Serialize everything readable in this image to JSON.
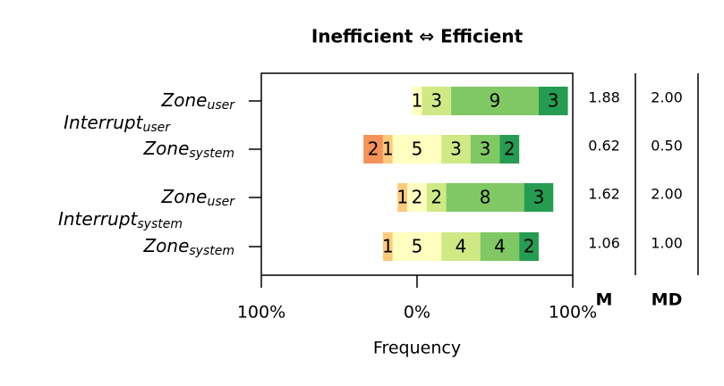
{
  "chart_data": {
    "type": "diverging_bar",
    "title": "Inefficient ⇔ Efficient",
    "x_label": "Frequency",
    "xlim": [
      -100,
      100
    ],
    "xticks": [
      {
        "value": -100,
        "label": "100%"
      },
      {
        "value": 0,
        "label": "0%"
      },
      {
        "value": 100,
        "label": "100%"
      }
    ],
    "neutral_index": 3,
    "row_labels": [
      {
        "base": "Zone",
        "sub": "user"
      },
      {
        "base": "Zone",
        "sub": "system"
      },
      {
        "base": "Zone",
        "sub": "user"
      },
      {
        "base": "Zone",
        "sub": "system"
      }
    ],
    "group_labels": [
      {
        "base": "Interrupt",
        "sub": "user"
      },
      {
        "base": "Interrupt",
        "sub": "system"
      }
    ],
    "series": [
      {
        "color": "#d73027",
        "values": [
          0,
          0,
          0,
          0
        ]
      },
      {
        "color": "#f4925a",
        "values": [
          0,
          2,
          0,
          0
        ]
      },
      {
        "color": "#fdca7c",
        "values": [
          0,
          1,
          1,
          1
        ]
      },
      {
        "color": "#ffffbf",
        "values": [
          1,
          5,
          2,
          5
        ]
      },
      {
        "color": "#cfe985",
        "values": [
          3,
          3,
          2,
          4
        ]
      },
      {
        "color": "#80c864",
        "values": [
          9,
          3,
          8,
          4
        ]
      },
      {
        "color": "#269c52",
        "values": [
          3,
          2,
          3,
          2
        ]
      }
    ],
    "stats": [
      {
        "label": "M",
        "values": [
          "1.88",
          "0.62",
          "1.62",
          "1.06"
        ]
      },
      {
        "label": "MD",
        "values": [
          "2.00",
          "0.50",
          "2.00",
          "1.00"
        ]
      }
    ]
  }
}
